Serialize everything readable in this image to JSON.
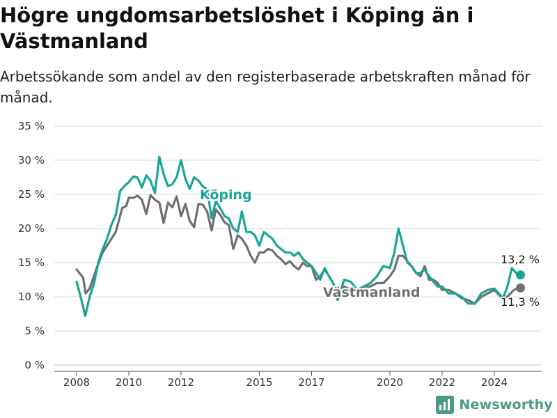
{
  "title": "Högre ungdomsarbetslöshet i Köping än i Västmanland",
  "subtitle": "Arbetssökande som andel av den registerbaserade arbetskraften månad för månad.",
  "brand": "Newsworthy",
  "colors": {
    "koping": "#19a596",
    "vastmanland": "#6f6f72",
    "grid": "#d9d9d9",
    "brand": "#4a9a86"
  },
  "chart_data": {
    "type": "line",
    "ylim": [
      0,
      35
    ],
    "xlim": [
      2007.6,
      2025.4
    ],
    "y_ticks": [
      0,
      5,
      10,
      15,
      20,
      25,
      30,
      35
    ],
    "y_tick_labels": [
      "0 %",
      "5 %",
      "10 %",
      "15 %",
      "20 %",
      "25 %",
      "30 %",
      "35 %"
    ],
    "x_ticks": [
      2008,
      2010,
      2012,
      2015,
      2017,
      2020,
      2022,
      2024
    ],
    "x_tick_labels": [
      "2008",
      "2010",
      "2012",
      "2015",
      "2017",
      "2020",
      "2022",
      "2024"
    ],
    "grid": true,
    "series": [
      {
        "name": "Västmanland",
        "label": "Västmanland",
        "end_value_label": "11,3 %",
        "color": "#6f6f72",
        "x": [
          2008.0,
          2008.25,
          2008.35,
          2008.5,
          2008.75,
          2009.0,
          2009.25,
          2009.5,
          2009.75,
          2009.9,
          2010.0,
          2010.17,
          2010.33,
          2010.5,
          2010.67,
          2010.83,
          2011.0,
          2011.17,
          2011.33,
          2011.5,
          2011.67,
          2011.83,
          2012.0,
          2012.17,
          2012.33,
          2012.5,
          2012.67,
          2012.83,
          2013.0,
          2013.17,
          2013.33,
          2013.5,
          2013.67,
          2013.83,
          2014.0,
          2014.17,
          2014.33,
          2014.5,
          2014.67,
          2014.83,
          2015.0,
          2015.17,
          2015.33,
          2015.5,
          2015.67,
          2015.83,
          2016.0,
          2016.17,
          2016.33,
          2016.5,
          2016.67,
          2016.83,
          2017.0,
          2017.17,
          2017.33,
          2017.5,
          2017.67,
          2017.83,
          2018.0,
          2018.25,
          2018.5,
          2018.75,
          2019.0,
          2019.25,
          2019.5,
          2019.75,
          2020.0,
          2020.17,
          2020.33,
          2020.5,
          2020.67,
          2020.83,
          2021.0,
          2021.17,
          2021.33,
          2021.5,
          2021.67,
          2021.83,
          2022.0,
          2022.25,
          2022.5,
          2022.75,
          2023.0,
          2023.25,
          2023.5,
          2023.75,
          2024.0,
          2024.25,
          2024.5,
          2024.75,
          2024.95,
          2025.0
        ],
        "y": [
          14.0,
          12.8,
          10.5,
          11.2,
          14.0,
          16.5,
          18.0,
          19.5,
          23.0,
          23.3,
          24.5,
          24.5,
          24.8,
          24.2,
          22.1,
          24.9,
          24.2,
          23.8,
          20.8,
          23.8,
          23.1,
          24.7,
          21.8,
          23.6,
          21.1,
          20.2,
          23.6,
          23.5,
          22.5,
          19.7,
          22.8,
          22.0,
          20.9,
          20.5,
          17.0,
          19.0,
          18.5,
          17.5,
          16.0,
          15.0,
          16.5,
          16.5,
          17.0,
          16.8,
          16.0,
          15.5,
          14.8,
          15.2,
          14.5,
          14.0,
          15.0,
          14.5,
          14.5,
          12.5,
          13.0,
          14.0,
          13.0,
          12.0,
          10.5,
          11.5,
          11.0,
          11.0,
          11.5,
          11.5,
          12.0,
          12.0,
          13.0,
          14.0,
          16.0,
          16.0,
          15.2,
          14.5,
          13.5,
          13.0,
          14.5,
          12.5,
          12.5,
          12.0,
          11.0,
          11.0,
          10.5,
          9.8,
          9.5,
          9.0,
          10.0,
          10.5,
          11.0,
          10.0,
          10.0,
          11.0,
          11.3,
          11.3
        ]
      },
      {
        "name": "Köping",
        "label": "Köping",
        "end_value_label": "13,2 %",
        "color": "#19a596",
        "x": [
          2008.0,
          2008.17,
          2008.33,
          2008.5,
          2008.67,
          2008.83,
          2009.0,
          2009.17,
          2009.33,
          2009.5,
          2009.67,
          2009.83,
          2010.0,
          2010.17,
          2010.33,
          2010.5,
          2010.67,
          2010.83,
          2011.0,
          2011.17,
          2011.33,
          2011.5,
          2011.67,
          2011.83,
          2012.0,
          2012.17,
          2012.33,
          2012.5,
          2012.67,
          2012.83,
          2013.0,
          2013.17,
          2013.33,
          2013.5,
          2013.67,
          2013.83,
          2014.0,
          2014.17,
          2014.33,
          2014.5,
          2014.67,
          2014.83,
          2015.0,
          2015.17,
          2015.33,
          2015.5,
          2015.67,
          2015.83,
          2016.0,
          2016.17,
          2016.33,
          2016.5,
          2016.67,
          2016.83,
          2017.0,
          2017.17,
          2017.33,
          2017.5,
          2017.67,
          2017.83,
          2018.0,
          2018.25,
          2018.5,
          2018.75,
          2019.0,
          2019.25,
          2019.5,
          2019.75,
          2020.0,
          2020.17,
          2020.33,
          2020.5,
          2020.67,
          2020.83,
          2021.0,
          2021.17,
          2021.33,
          2021.5,
          2021.67,
          2021.83,
          2022.0,
          2022.25,
          2022.5,
          2022.75,
          2023.0,
          2023.25,
          2023.5,
          2023.75,
          2024.0,
          2024.17,
          2024.33,
          2024.5,
          2024.67,
          2024.83,
          2024.95,
          2025.0
        ],
        "y": [
          12.2,
          9.8,
          7.2,
          10.0,
          12.0,
          15.0,
          17.0,
          18.5,
          20.5,
          22.0,
          25.5,
          26.2,
          26.8,
          27.6,
          27.5,
          26.0,
          27.8,
          27.0,
          25.2,
          30.5,
          28.0,
          26.2,
          26.5,
          27.5,
          30.0,
          27.2,
          25.8,
          27.5,
          27.0,
          26.2,
          25.7,
          21.5,
          24.0,
          23.0,
          21.8,
          21.5,
          20.0,
          19.5,
          22.5,
          19.5,
          19.5,
          19.0,
          17.5,
          19.5,
          19.0,
          18.5,
          17.5,
          17.0,
          16.5,
          16.5,
          16.0,
          16.5,
          15.5,
          15.0,
          14.5,
          13.5,
          12.5,
          14.2,
          13.0,
          12.0,
          9.5,
          12.5,
          12.2,
          11.0,
          11.5,
          12.0,
          13.0,
          14.5,
          14.2,
          16.5,
          20.0,
          17.5,
          15.0,
          14.5,
          13.5,
          13.5,
          14.0,
          13.0,
          12.2,
          11.5,
          11.5,
          10.5,
          10.5,
          10.0,
          9.0,
          9.0,
          10.5,
          11.0,
          11.2,
          10.5,
          9.8,
          11.5,
          14.2,
          13.5,
          13.2,
          13.2
        ]
      }
    ]
  }
}
